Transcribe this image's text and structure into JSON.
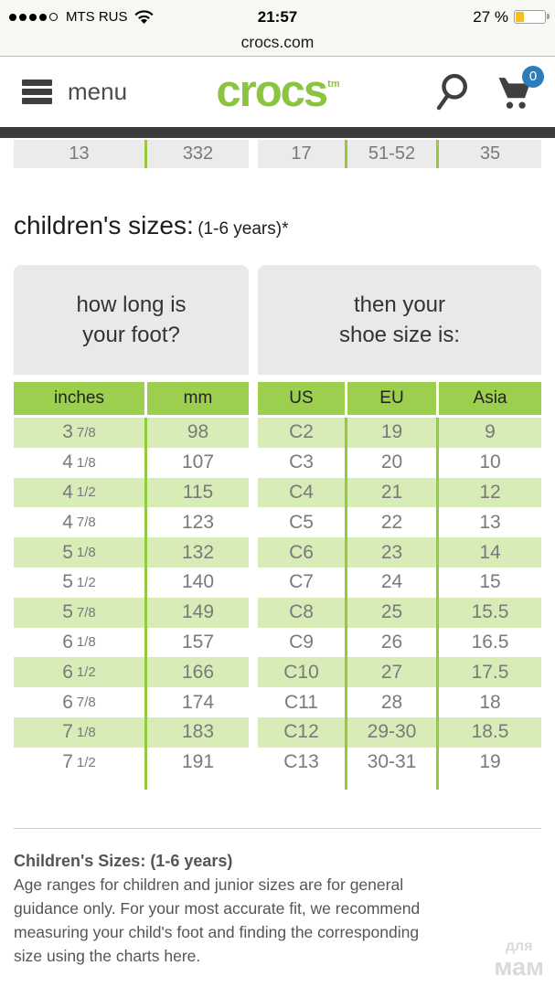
{
  "status_bar": {
    "carrier": "MTS RUS",
    "time": "21:57",
    "battery_label": "27 %",
    "battery_percent": 27,
    "signal_dots_filled": 4,
    "signal_dots_total": 5,
    "url": "crocs.com"
  },
  "header": {
    "menu_label": "menu",
    "logo_text": "crocs",
    "logo_tm": "tm",
    "cart_count": "0",
    "icons": [
      "hamburger-icon",
      "search-icon",
      "cart-icon"
    ]
  },
  "partial_row": {
    "left": [
      "13",
      "332"
    ],
    "right": [
      "17",
      "51-52",
      "35"
    ]
  },
  "heading": {
    "title": "children's sizes:",
    "subtitle": "(1-6 years)*"
  },
  "size_chart": {
    "left_panel_title": "how long is\nyour foot?",
    "right_panel_title": "then your\nshoe size is:",
    "left_headers": [
      "inches",
      "mm"
    ],
    "right_headers": [
      "US",
      "EU",
      "Asia"
    ],
    "rows": [
      {
        "inches": "3 7/8",
        "mm": "98",
        "us": "C2",
        "eu": "19",
        "asia": "9"
      },
      {
        "inches": "4 1/8",
        "mm": "107",
        "us": "C3",
        "eu": "20",
        "asia": "10"
      },
      {
        "inches": "4 1/2",
        "mm": "115",
        "us": "C4",
        "eu": "21",
        "asia": "12"
      },
      {
        "inches": "4 7/8",
        "mm": "123",
        "us": "C5",
        "eu": "22",
        "asia": "13"
      },
      {
        "inches": "5 1/8",
        "mm": "132",
        "us": "C6",
        "eu": "23",
        "asia": "14"
      },
      {
        "inches": "5 1/2",
        "mm": "140",
        "us": "C7",
        "eu": "24",
        "asia": "15"
      },
      {
        "inches": "5 7/8",
        "mm": "149",
        "us": "C8",
        "eu": "25",
        "asia": "15.5"
      },
      {
        "inches": "6 1/8",
        "mm": "157",
        "us": "C9",
        "eu": "26",
        "asia": "16.5"
      },
      {
        "inches": "6 1/2",
        "mm": "166",
        "us": "C10",
        "eu": "27",
        "asia": "17.5"
      },
      {
        "inches": "6 7/8",
        "mm": "174",
        "us": "C11",
        "eu": "28",
        "asia": "18"
      },
      {
        "inches": "7 1/8",
        "mm": "183",
        "us": "C12",
        "eu": "29-30",
        "asia": "18.5"
      },
      {
        "inches": "7 1/2",
        "mm": "191",
        "us": "C13",
        "eu": "30-31",
        "asia": "19"
      }
    ]
  },
  "footnote": {
    "title": "Children's Sizes: (1-6 years)",
    "body": "Age ranges for children and junior sizes are for general guidance only. For your most accurate fit, we recommend measuring your child's foot and finding the corresponding size using the charts here."
  },
  "watermark": {
    "line1": "для",
    "line2": "мам"
  },
  "colors": {
    "brand_green": "#8bc53f",
    "header_green": "#9ccf4d",
    "row_green": "#d8ecb8",
    "separator_green": "#94ca3e",
    "badge_blue": "#2e7cb8",
    "battery_yellow": "#f2c01d",
    "dark_bar": "#3b3b3b"
  }
}
